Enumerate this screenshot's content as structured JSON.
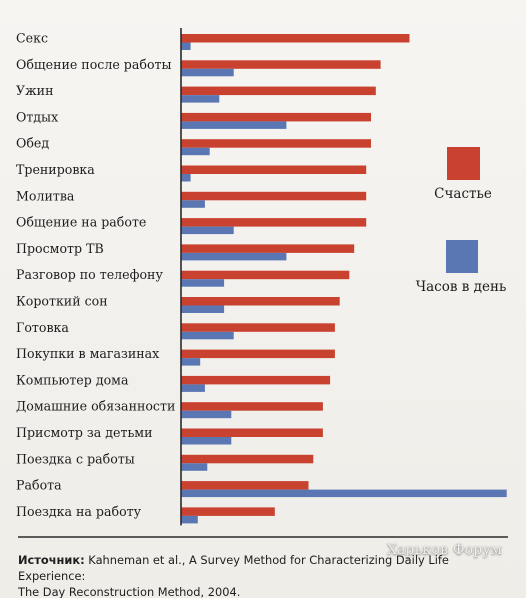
{
  "chart_data": {
    "type": "bar",
    "orientation": "horizontal",
    "categories": [
      "Секс",
      "Общение после работы",
      "Ужин",
      "Отдых",
      "Обед",
      "Тренировка",
      "Молитва",
      "Общение на работе",
      "Просмотр ТВ",
      "Разговор по телефону",
      "Короткий сон",
      "Готовка",
      "Покупки в магазинах",
      "Компьютер дома",
      "Домашние обязанности",
      "Присмотр за детьми",
      "Поездка с работы",
      "Работа",
      "Поездка на работу"
    ],
    "series": [
      {
        "name": "Счастье",
        "color": "#c9412f",
        "values": [
          4.75,
          4.15,
          4.05,
          3.95,
          3.95,
          3.85,
          3.85,
          3.85,
          3.6,
          3.5,
          3.3,
          3.2,
          3.2,
          3.1,
          2.95,
          2.95,
          2.75,
          2.65,
          1.95
        ]
      },
      {
        "name": "Часов в день",
        "color": "#5b77b3",
        "values": [
          0.2,
          1.1,
          0.8,
          2.2,
          0.6,
          0.2,
          0.5,
          1.1,
          2.2,
          0.9,
          0.9,
          1.1,
          0.4,
          0.5,
          1.05,
          1.05,
          0.55,
          6.8,
          0.35
        ]
      }
    ],
    "legend": {
      "position": "right",
      "entries": [
        "Счастье",
        "Часов в день"
      ]
    },
    "grid": false
  },
  "source": {
    "label": "Источник:",
    "line1": "Kahneman et al., A Survey Method for Characterizing Daily Life Experience:",
    "line2": "The Day Reconstruction Method, 2004."
  },
  "watermark": "Харьков Форум"
}
